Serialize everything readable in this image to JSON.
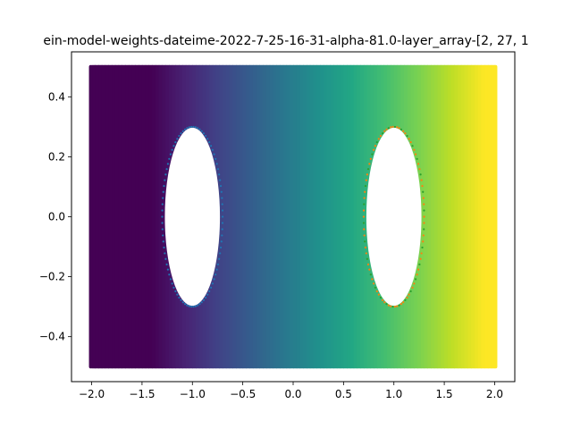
{
  "chart_data": {
    "type": "scatter",
    "title": "ein-model-weights-dateime-2022-7-25-16-31-alpha-81.0-layer_array-[2, 27, 1",
    "xlabel": "",
    "ylabel": "",
    "xlim": [
      -2.2,
      2.2
    ],
    "ylim": [
      -0.55,
      0.55
    ],
    "x_ticks": [
      -2.0,
      -1.5,
      -1.0,
      -0.5,
      0.0,
      0.5,
      1.0,
      1.5,
      2.0
    ],
    "x_tick_labels": [
      "−2.0",
      "−1.5",
      "−1.0",
      "−0.5",
      "0.0",
      "0.5",
      "1.0",
      "1.5",
      "2.0"
    ],
    "y_ticks": [
      -0.4,
      -0.2,
      0.0,
      0.2,
      0.4
    ],
    "y_tick_labels": [
      "−0.4",
      "−0.2",
      "0.0",
      "0.2",
      "0.4"
    ],
    "grid": false,
    "colormap": "viridis",
    "field": {
      "x_range": [
        -2.0,
        2.0
      ],
      "y_range": [
        -0.5,
        0.5
      ],
      "color_value_low_x": -1.4,
      "color_value_high_x": 1.9
    },
    "holes": [
      {
        "cx": -1.0,
        "cy": 0.0,
        "rx": 0.3,
        "ry": 0.3
      },
      {
        "cx": 1.0,
        "cy": 0.0,
        "rx": 0.3,
        "ry": 0.3
      }
    ],
    "series": [
      {
        "values": [],
        "color": "#1f77b4",
        "cx": -1.0,
        "cy": 0.0,
        "r": 0.3,
        "marker": "dot"
      },
      {
        "values": [],
        "color": "#ff7f0e",
        "cx": 1.0,
        "cy": 0.0,
        "r": 0.3,
        "marker": "dot",
        "overlay_color": "#2ca02c"
      }
    ]
  }
}
